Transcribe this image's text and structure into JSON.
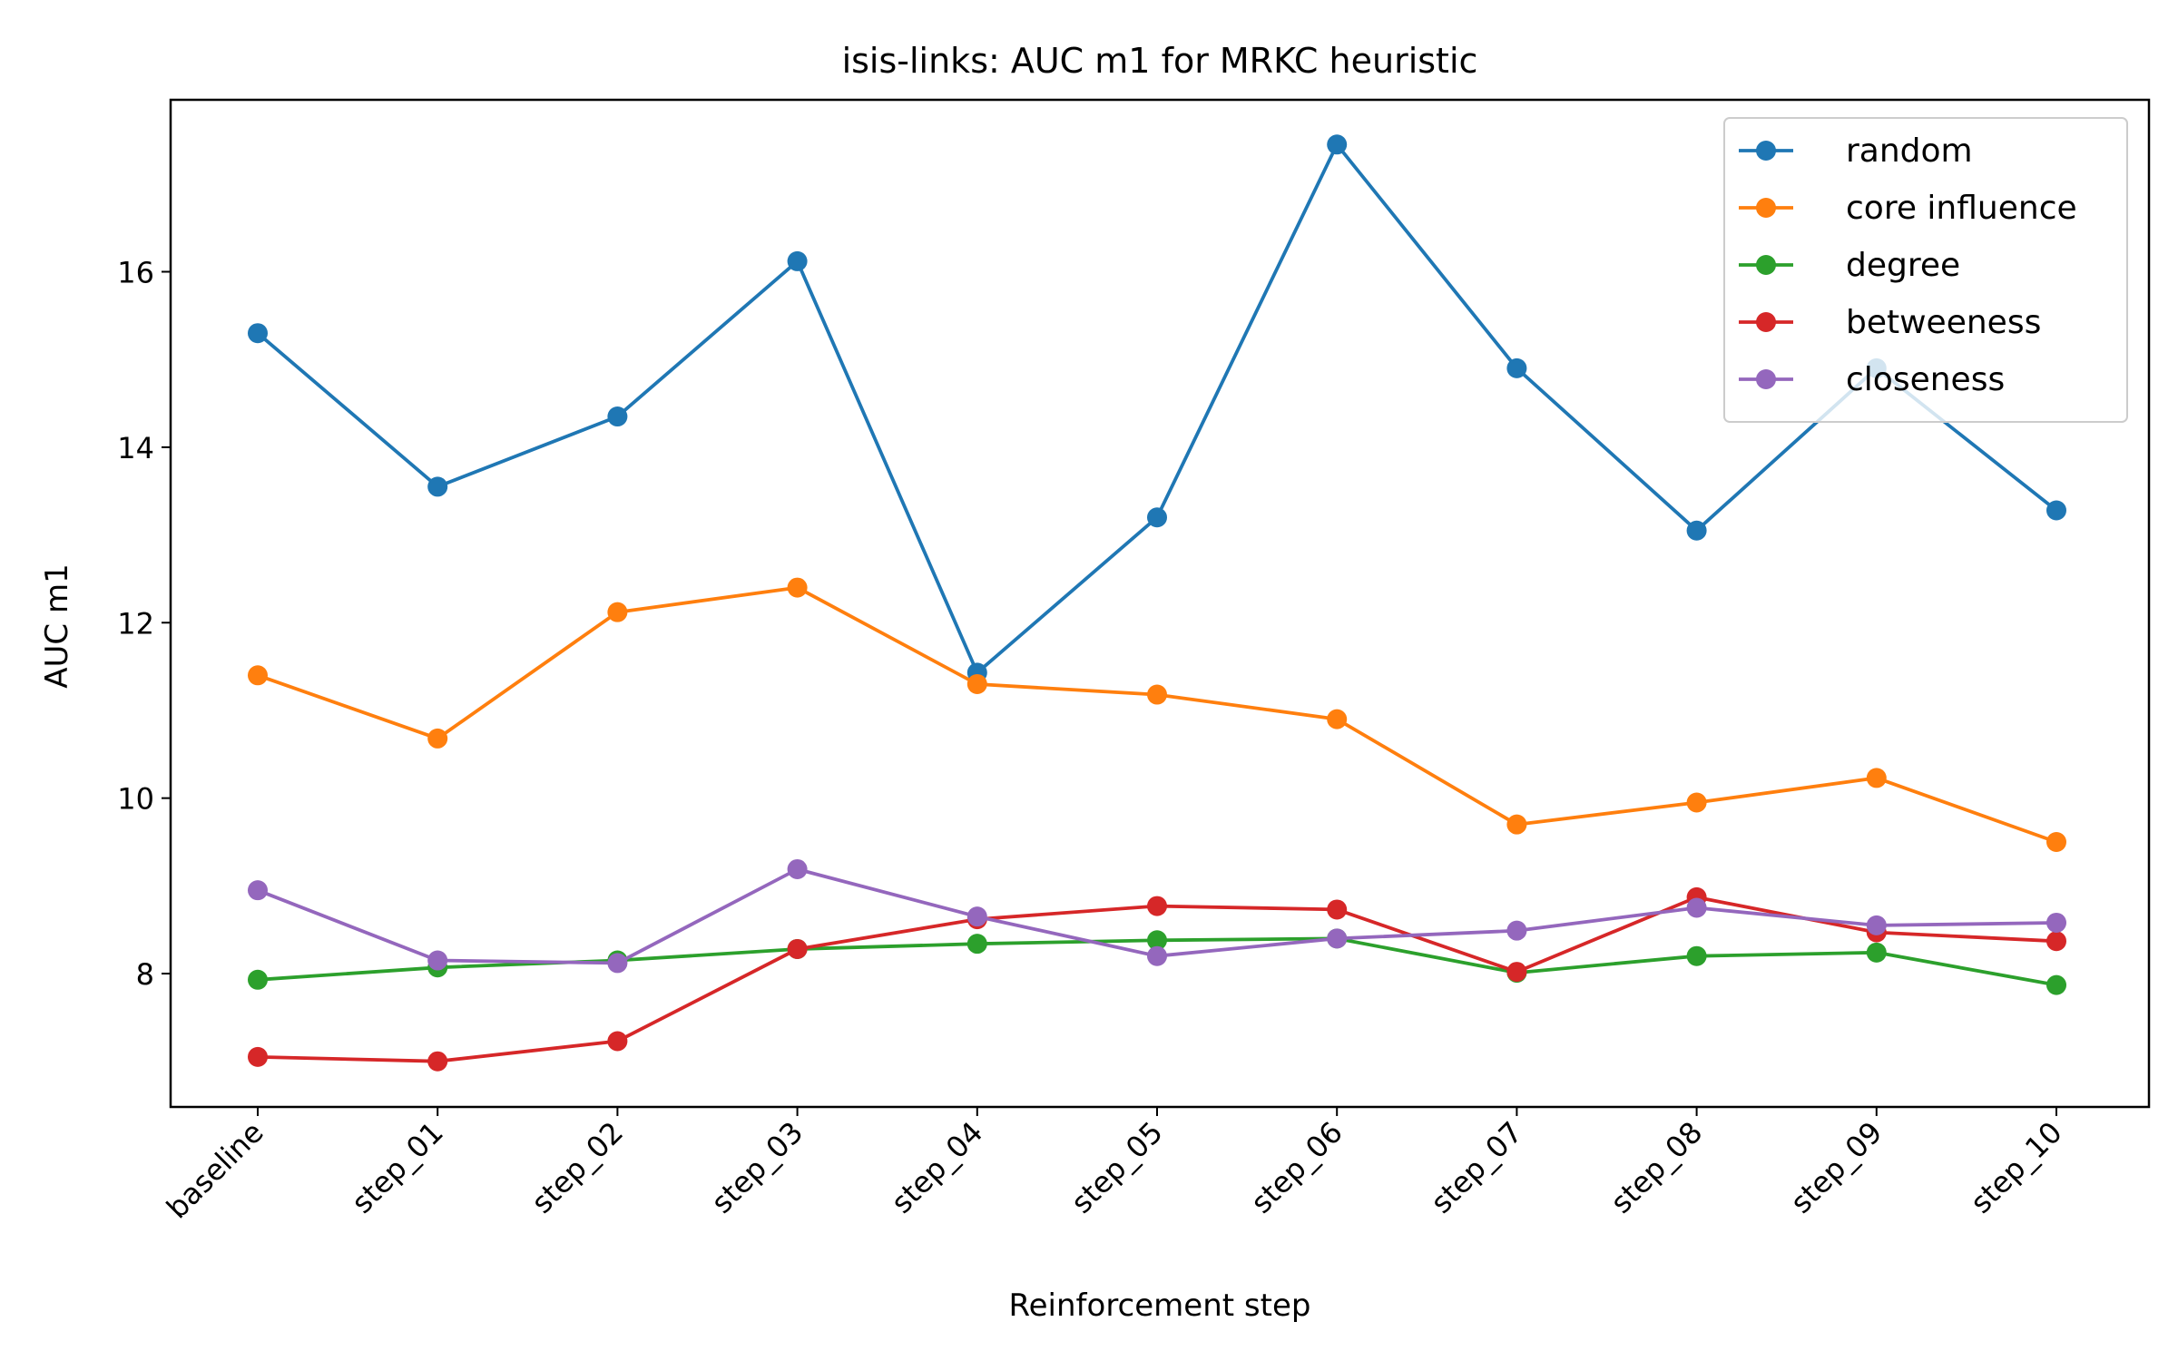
{
  "chart_data": {
    "type": "line",
    "title": "isis-links: AUC m1 for MRKC heuristic",
    "xlabel": "Reinforcement step",
    "ylabel": "AUC m1",
    "categories": [
      "baseline",
      "step_01",
      "step_02",
      "step_03",
      "step_04",
      "step_05",
      "step_06",
      "step_07",
      "step_08",
      "step_09",
      "step_10"
    ],
    "yticks": [
      8,
      10,
      12,
      14,
      16
    ],
    "ylim": [
      6.48,
      17.96
    ],
    "grid": false,
    "legend_position": "top-right",
    "series": [
      {
        "name": "random",
        "color": "#1f77b4",
        "values": [
          15.3,
          13.55,
          14.35,
          16.12,
          11.43,
          13.2,
          17.45,
          14.9,
          13.05,
          14.9,
          13.28
        ]
      },
      {
        "name": "core influence",
        "color": "#ff7f0e",
        "values": [
          11.4,
          10.68,
          12.12,
          12.4,
          11.3,
          11.18,
          10.9,
          9.7,
          9.95,
          10.23,
          9.5
        ]
      },
      {
        "name": "degree",
        "color": "#2ca02c",
        "values": [
          7.93,
          8.07,
          8.15,
          8.28,
          8.34,
          8.38,
          8.4,
          8.01,
          8.2,
          8.24,
          7.87
        ]
      },
      {
        "name": "betweeness",
        "color": "#d62728",
        "values": [
          7.05,
          7.0,
          7.23,
          8.28,
          8.62,
          8.77,
          8.73,
          8.02,
          8.87,
          8.47,
          8.37
        ]
      },
      {
        "name": "closeness",
        "color": "#9467bd",
        "values": [
          8.95,
          8.15,
          8.12,
          9.19,
          8.65,
          8.2,
          8.4,
          8.49,
          8.75,
          8.55,
          8.58
        ]
      }
    ]
  }
}
